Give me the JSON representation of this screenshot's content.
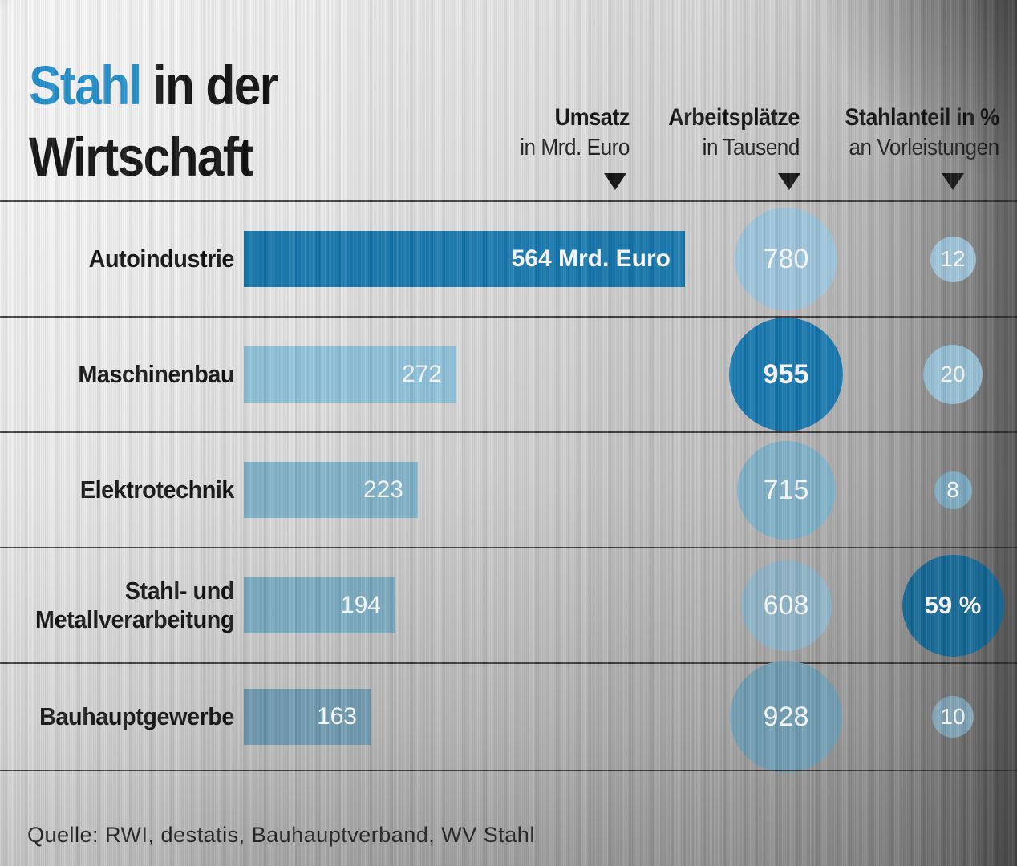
{
  "title": {
    "part1": "Stahl",
    "part2": " in der",
    "line2": "Wirtschaft"
  },
  "columns": {
    "umsatz": {
      "label": "Umsatz",
      "sublabel": "in Mrd. Euro"
    },
    "arbeitsplaetze": {
      "label": "Arbeitsplätze",
      "sublabel": "in Tausend"
    },
    "stahlanteil": {
      "label": "Stahlanteil in %",
      "sublabel": "an Vorleistungen"
    }
  },
  "rows": [
    {
      "label": "Autoindustrie",
      "umsatz": 564,
      "umsatz_display": "564 Mrd. Euro",
      "jobs": 780,
      "jobs_display": "780",
      "share": 12,
      "share_display": "12",
      "colors": {
        "bar": "#1176af",
        "jobs": "#9dc7de",
        "share": "#9cc3d9"
      },
      "emphasis": {
        "umsatz": true,
        "jobs": false,
        "share": false
      }
    },
    {
      "label": "Maschinenbau",
      "umsatz": 272,
      "umsatz_display": "272",
      "jobs": 955,
      "jobs_display": "955",
      "share": 20,
      "share_display": "20",
      "colors": {
        "bar": "#8ec3dd",
        "jobs": "#1176af",
        "share": "#95c0d6"
      },
      "emphasis": {
        "umsatz": false,
        "jobs": true,
        "share": false
      }
    },
    {
      "label": "Elektrotechnik",
      "umsatz": 223,
      "umsatz_display": "223",
      "jobs": 715,
      "jobs_display": "715",
      "share": 8,
      "share_display": "8",
      "colors": {
        "bar": "#80b3cb",
        "jobs": "#7fb2ca",
        "share": "#79a9c1"
      },
      "emphasis": {
        "umsatz": false,
        "jobs": false,
        "share": false
      }
    },
    {
      "label": "Stahl- und\nMetallverarbeitung",
      "umsatz": 194,
      "umsatz_display": "194",
      "jobs": 608,
      "jobs_display": "608",
      "share": 59,
      "share_display": "59 %",
      "colors": {
        "bar": "#7aabc2",
        "jobs": "#8db5c9",
        "share": "#0d6494"
      },
      "emphasis": {
        "umsatz": false,
        "jobs": false,
        "share": true
      }
    },
    {
      "label": "Bauhauptgewerbe",
      "umsatz": 163,
      "umsatz_display": "163",
      "jobs": 928,
      "jobs_display": "928",
      "share": 10,
      "share_display": "10",
      "colors": {
        "bar": "#6d99af",
        "jobs": "#6f9db3",
        "share": "#7da2b5"
      },
      "emphasis": {
        "umsatz": false,
        "jobs": false,
        "share": false
      }
    }
  ],
  "source": "Quelle: RWI, destatis, Bauhauptverband, WV Stahl",
  "colors": {
    "title_accent": "#1b8cca",
    "dark_blue": "#1176af",
    "deep_blue": "#0d6494",
    "divider": "#262626",
    "heading_text": "#0d0d0d",
    "value_text": "#ffffff"
  },
  "chart_data": {
    "type": "bar",
    "title": "Stahl in der Wirtschaft",
    "categories": [
      "Autoindustrie",
      "Maschinenbau",
      "Elektrotechnik",
      "Stahl- und Metallverarbeitung",
      "Bauhauptgewerbe"
    ],
    "series": [
      {
        "name": "Umsatz in Mrd. Euro",
        "values": [
          564,
          272,
          223,
          194,
          163
        ]
      },
      {
        "name": "Arbeitsplätze in Tausend",
        "values": [
          780,
          955,
          715,
          608,
          928
        ]
      },
      {
        "name": "Stahlanteil in % an Vorleistungen",
        "values": [
          12,
          20,
          8,
          59,
          10
        ]
      }
    ],
    "highlighted": {
      "umsatz": "Autoindustrie 564 Mrd. Euro",
      "arbeitsplaetze": "Maschinenbau 955",
      "stahlanteil": "Stahl- und Metallverarbeitung 59 %"
    },
    "legend_position": "top",
    "grid": false,
    "source": "Quelle: RWI, destatis, Bauhauptverband, WV Stahl"
  }
}
